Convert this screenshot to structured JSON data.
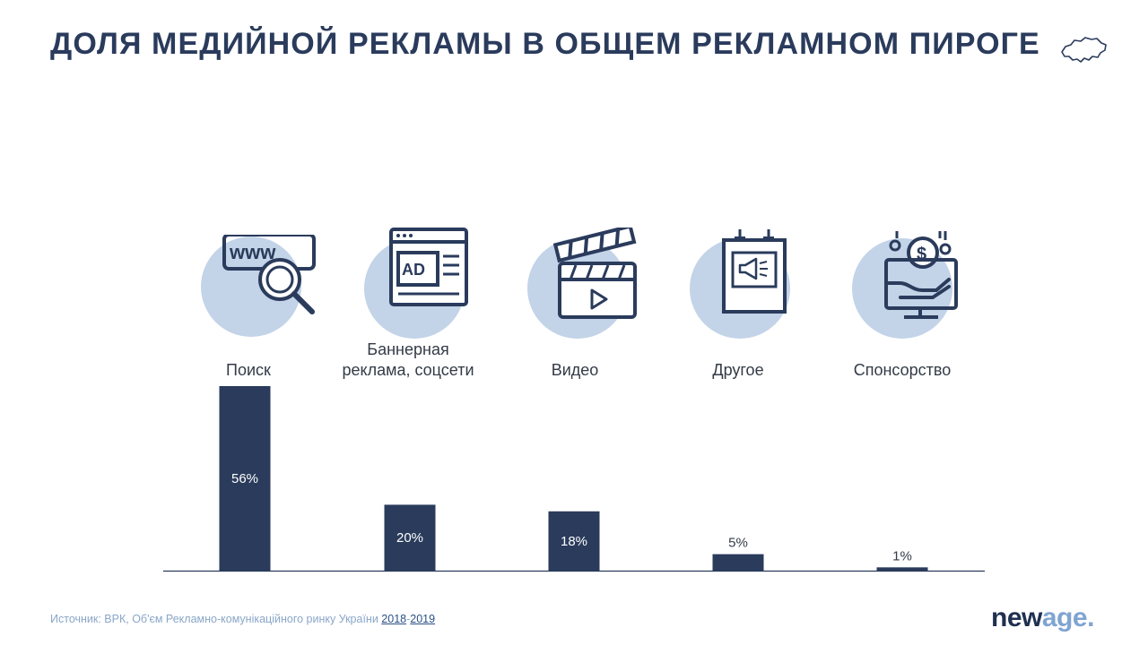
{
  "title": "ДОЛЯ МЕДИЙНОЙ РЕКЛАМЫ В ОБЩЕМ РЕКЛАМНОМ ПИРОГЕ",
  "colors": {
    "bar": "#2a3b5c",
    "circle": "#c3d3e8",
    "icon_stroke": "#2a3b5c",
    "title": "#2a3b5c"
  },
  "icons": [
    "www-search-icon",
    "ad-banner-icon",
    "video-clapper-icon",
    "poster-megaphone-icon",
    "sponsorship-hand-dollar-icon"
  ],
  "chart_data": {
    "type": "bar",
    "categories": [
      "Поиск",
      "Баннерная реклама, соцсети",
      "Видео",
      "Другое",
      "Спонсорство"
    ],
    "values": [
      56,
      20,
      18,
      5,
      1
    ],
    "value_labels": [
      "56%",
      "20%",
      "18%",
      "5%",
      "1%"
    ],
    "ylim": [
      0,
      56
    ],
    "grid": false,
    "legend": "none"
  },
  "footer": {
    "source_prefix": "Источник: ВРК, Об'єм Рекламно-комунікаційного ринку України ",
    "link1": "2018",
    "sep": "-",
    "link2": "2019"
  },
  "logo": {
    "part1": "new",
    "part2": "age",
    "dot": "."
  }
}
